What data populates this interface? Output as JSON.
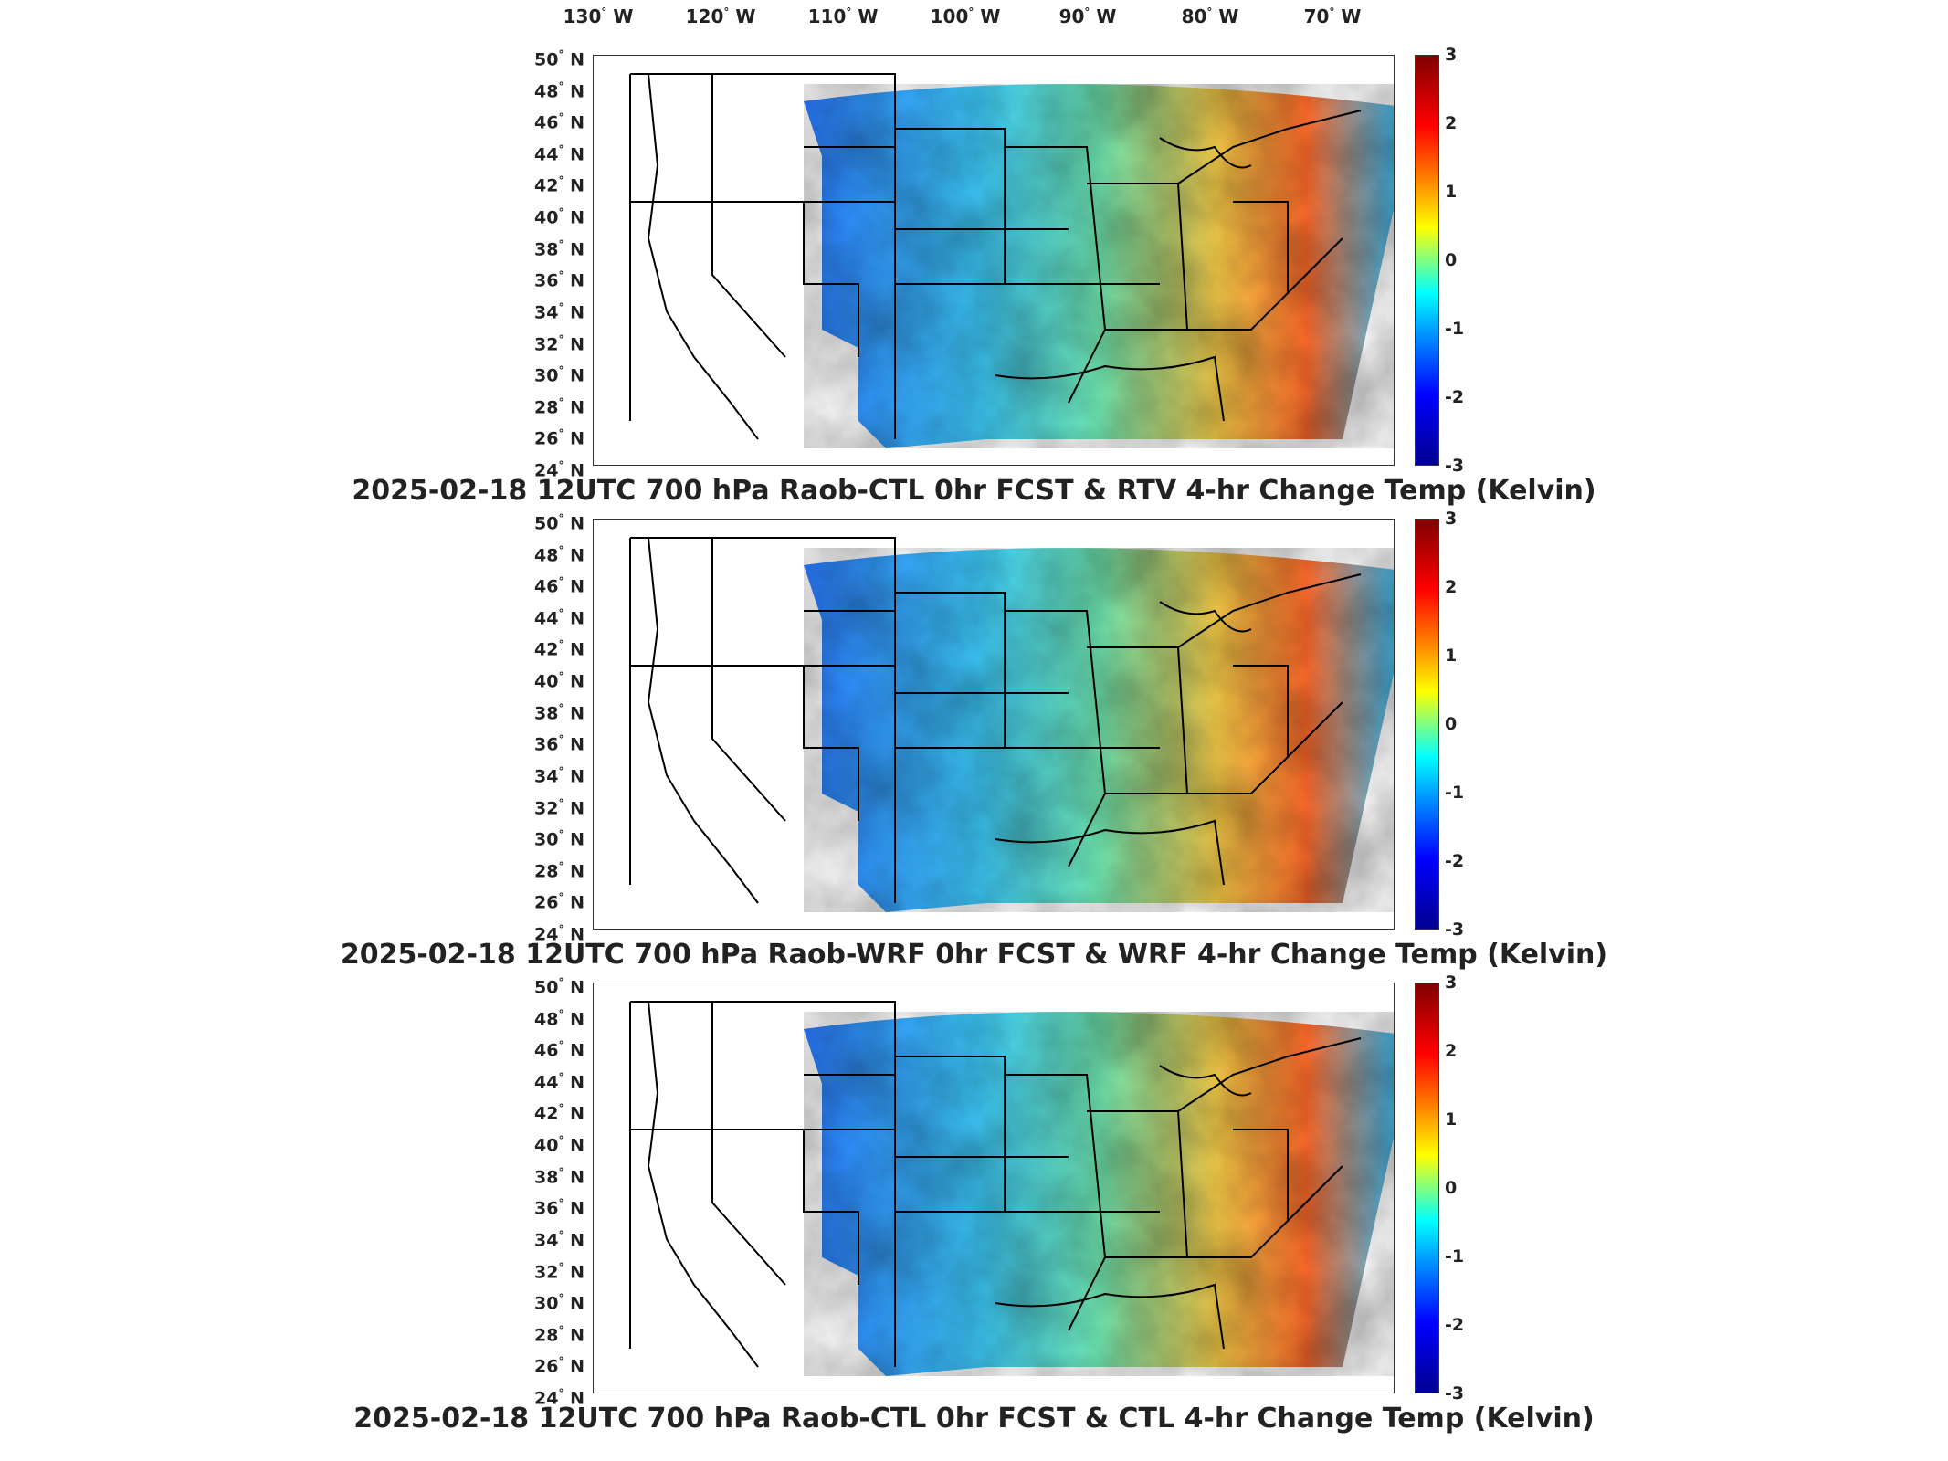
{
  "lon_labels": [
    "130",
    "120",
    "110",
    "100",
    "90",
    "80",
    "70"
  ],
  "lon_suffix": "W",
  "lat_labels": [
    "50",
    "48",
    "46",
    "44",
    "42",
    "40",
    "38",
    "36",
    "34",
    "32",
    "30",
    "28",
    "26",
    "24"
  ],
  "lat_suffix": "N",
  "degree_symbol": "°",
  "colorbar": {
    "ticks": [
      "3",
      "2",
      "1",
      "0",
      "-1",
      "-2",
      "-3"
    ],
    "range": [
      -3,
      3
    ],
    "colormap": "jet",
    "colors": [
      "#00008f",
      "#0000ff",
      "#0080ff",
      "#00ffff",
      "#80ff80",
      "#ffff00",
      "#ff8000",
      "#ff0000",
      "#7f0000"
    ]
  },
  "panels": [
    {
      "title": "2025-02-18 12UTC 700 hPa Raob-CTL 0hr FCST & RTV 4-hr Change Temp (Kelvin)"
    },
    {
      "title": "2025-02-18 12UTC 700 hPa Raob-WRF 0hr FCST & WRF 4-hr Change Temp (Kelvin)"
    },
    {
      "title": "2025-02-18 12UTC 700 hPa Raob-CTL 0hr FCST & CTL 4-hr Change Temp (Kelvin)"
    }
  ]
}
